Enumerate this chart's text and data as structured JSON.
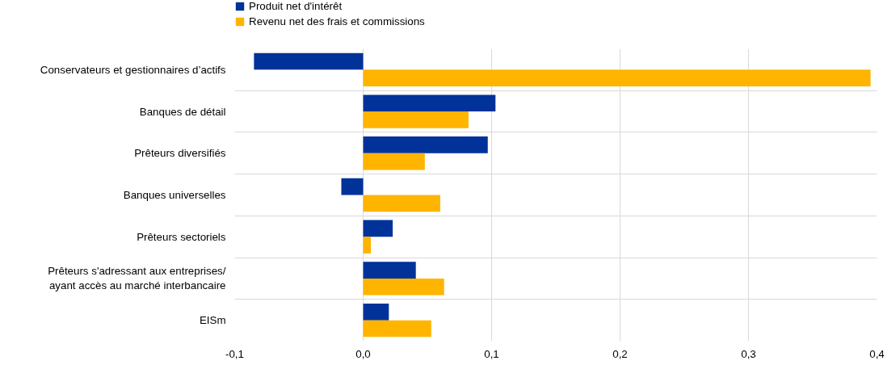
{
  "chart_data": {
    "type": "bar",
    "orientation": "horizontal",
    "categories": [
      "Conservateurs et gestionnaires d’actifs",
      "Banques de détail",
      "Prêteurs diversifiés",
      "Banques universelles",
      "Prêteurs sectoriels",
      "Prêteurs s'adressant aux entreprises/\nayant accès au marché interbancaire",
      "EISm"
    ],
    "series": [
      {
        "name": "Produit net d'intérêt",
        "color": "#003299",
        "values": [
          -0.085,
          0.103,
          0.097,
          -0.017,
          0.023,
          0.041,
          0.02
        ]
      },
      {
        "name": "Revenu net des frais et commissions",
        "color": "#ffb400",
        "values": [
          0.395,
          0.082,
          0.048,
          0.06,
          0.006,
          0.063,
          0.053
        ]
      }
    ],
    "xlim": [
      -0.1,
      0.4
    ],
    "xticks": [
      {
        "value": -0.1,
        "label": "-0,1"
      },
      {
        "value": 0.0,
        "label": "0,0"
      },
      {
        "value": 0.1,
        "label": "0,1"
      },
      {
        "value": 0.2,
        "label": "0,2"
      },
      {
        "value": 0.3,
        "label": "0,3"
      },
      {
        "value": 0.4,
        "label": "0,4"
      }
    ],
    "grid": true,
    "legend": "top left"
  }
}
